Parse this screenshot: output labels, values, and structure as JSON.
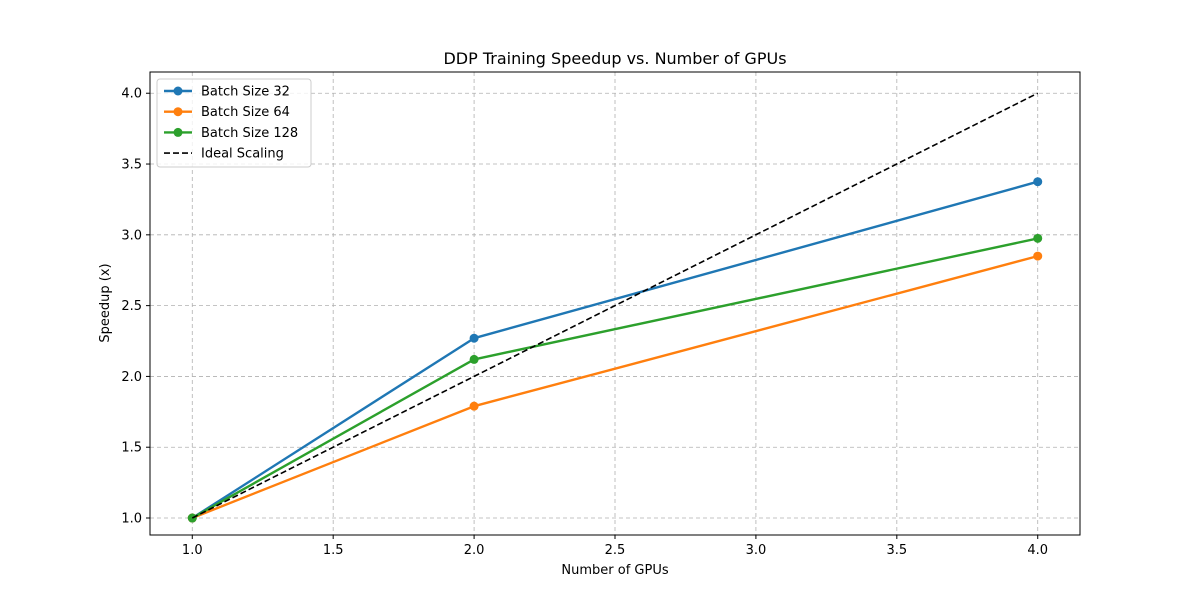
{
  "chart_data": {
    "type": "line",
    "title": "DDP Training Speedup vs. Number of GPUs",
    "xlabel": "Number of GPUs",
    "ylabel": "Speedup (x)",
    "x": [
      1,
      2,
      4
    ],
    "xlim": [
      0.85,
      4.15
    ],
    "ylim": [
      0.88,
      4.15
    ],
    "xticks": [
      "1.0",
      "1.5",
      "2.0",
      "2.5",
      "3.0",
      "3.5",
      "4.0"
    ],
    "yticks": [
      "1.0",
      "1.5",
      "2.0",
      "2.5",
      "3.0",
      "3.5",
      "4.0"
    ],
    "grid": true,
    "legend_position": "top-left",
    "series": [
      {
        "name": "Batch Size 32",
        "color": "#1f77b4",
        "style": "solid",
        "marker": "circle",
        "values": [
          1.0,
          2.27,
          3.375
        ]
      },
      {
        "name": "Batch Size 64",
        "color": "#ff7f0e",
        "style": "solid",
        "marker": "circle",
        "values": [
          1.0,
          1.79,
          2.85
        ]
      },
      {
        "name": "Batch Size 128",
        "color": "#2ca02c",
        "style": "solid",
        "marker": "circle",
        "values": [
          1.0,
          2.12,
          2.975
        ]
      },
      {
        "name": "Ideal Scaling",
        "color": "#000000",
        "style": "dashed",
        "marker": "none",
        "values": [
          1.0,
          2.0,
          4.0
        ]
      }
    ]
  }
}
